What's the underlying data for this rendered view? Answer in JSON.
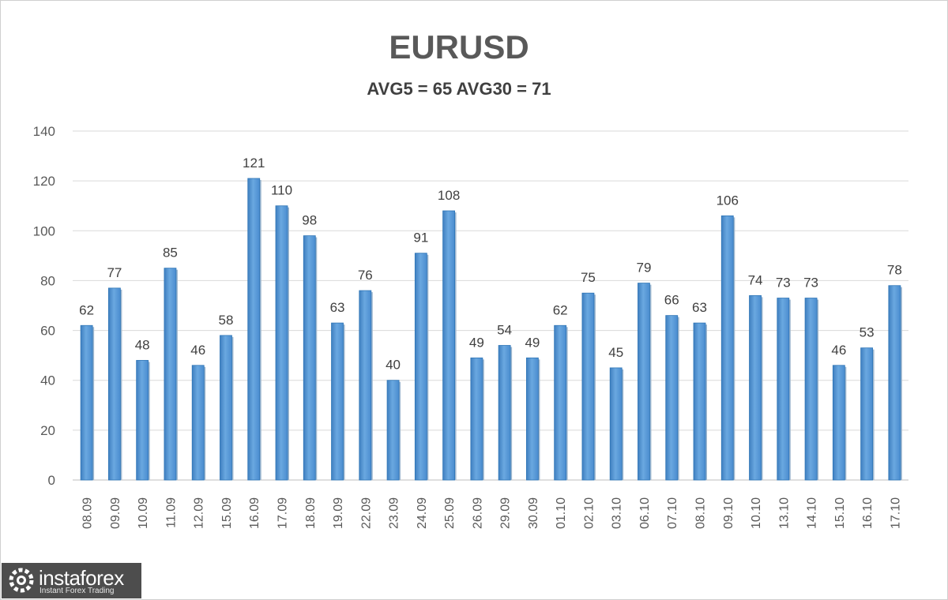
{
  "chart_data": {
    "type": "bar",
    "title": "EURUSD",
    "subtitle": "AVG5 = 65 AVG30 = 71",
    "categories": [
      "08.09",
      "09.09",
      "10.09",
      "11.09",
      "12.09",
      "15.09",
      "16.09",
      "17.09",
      "18.09",
      "19.09",
      "22.09",
      "23.09",
      "24.09",
      "25.09",
      "26.09",
      "29.09",
      "30.09",
      "01.10",
      "02.10",
      "03.10",
      "06.10",
      "07.10",
      "08.10",
      "09.10",
      "10.10",
      "13.10",
      "14.10",
      "15.10",
      "16.10",
      "17.10"
    ],
    "values": [
      62,
      77,
      48,
      85,
      46,
      58,
      121,
      110,
      98,
      63,
      76,
      40,
      91,
      108,
      49,
      54,
      49,
      62,
      75,
      45,
      79,
      66,
      63,
      106,
      74,
      73,
      73,
      46,
      53,
      78
    ],
    "ylim": [
      0,
      140
    ],
    "yticks": [
      0,
      20,
      40,
      60,
      80,
      100,
      120,
      140
    ],
    "grid": true,
    "legend": "none",
    "bar_color": "#5b9bd5",
    "bar_dark": "#2e75b6"
  },
  "watermark": {
    "brand": "instaforex",
    "tagline": "Instant Forex Trading",
    "icon": "instaforex-logo-icon"
  }
}
